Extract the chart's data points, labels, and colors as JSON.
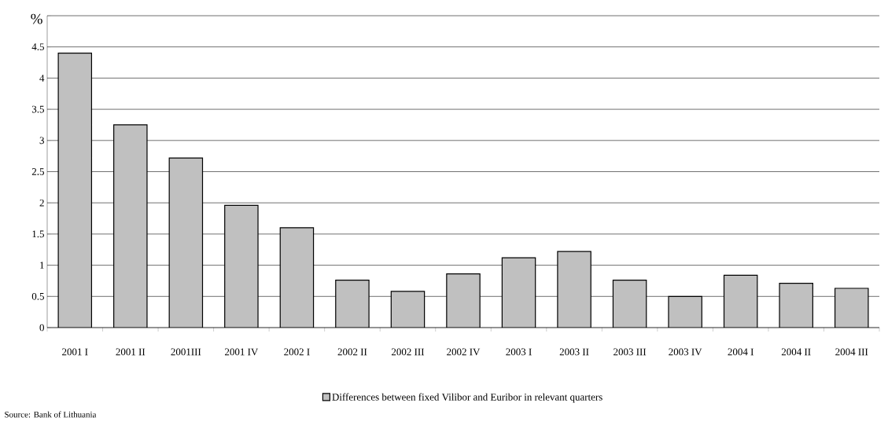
{
  "chart_data": {
    "type": "bar",
    "ylabel": "%",
    "categories": [
      "2001 I",
      "2001 II",
      "2001III",
      "2001 IV",
      "2002 I",
      "2002 II",
      "2002 III",
      "2002 IV",
      "2003 I",
      "2003 II",
      "2003 III",
      "2003 IV",
      "2004 I",
      "2004 II",
      "2004 III"
    ],
    "series": [
      {
        "name": "Differences between fixed Vilibor and Euribor in relevant quarters",
        "color": "#c0c0c0",
        "values": [
          4.4,
          3.25,
          2.72,
          1.96,
          1.6,
          0.76,
          0.58,
          0.86,
          1.12,
          1.22,
          0.76,
          0.5,
          0.84,
          0.71,
          0.63
        ]
      }
    ],
    "ylim": [
      0,
      5
    ],
    "yticks": [
      0,
      0.5,
      1,
      1.5,
      2,
      2.5,
      3,
      3.5,
      4,
      4.5,
      {
        "value": 5,
        "label": null
      }
    ],
    "grid": "y",
    "legend": "bottom",
    "annotations": [
      "Source: Bank of Lithuania"
    ]
  }
}
